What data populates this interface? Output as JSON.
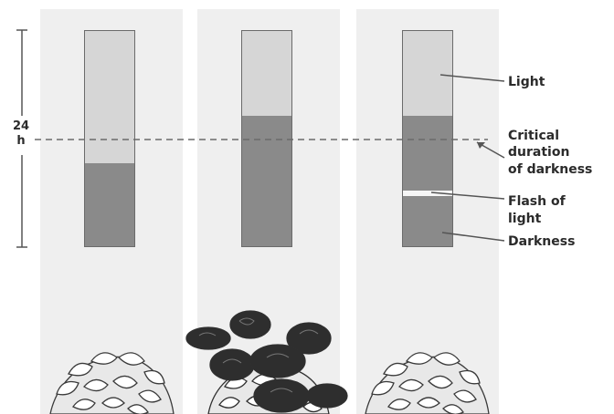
{
  "scale": {
    "hours_value": "24",
    "hours_unit": "h"
  },
  "labels": {
    "light": "Light",
    "critical_line1": "Critical",
    "critical_line2": "duration",
    "critical_line3": "of darkness",
    "flash_line1": "Flash of",
    "flash_line2": "light",
    "darkness": "Darkness"
  },
  "bars": [
    {
      "light_fraction": 0.62,
      "flash": false,
      "flowering": false
    },
    {
      "light_fraction": 0.4,
      "flash": false,
      "flowering": true
    },
    {
      "light_fraction": 0.4,
      "flash": true,
      "flowering": false
    }
  ],
  "colors": {
    "light": "#d6d6d6",
    "darkness": "#8a8a8a",
    "panel": "#efefef"
  }
}
